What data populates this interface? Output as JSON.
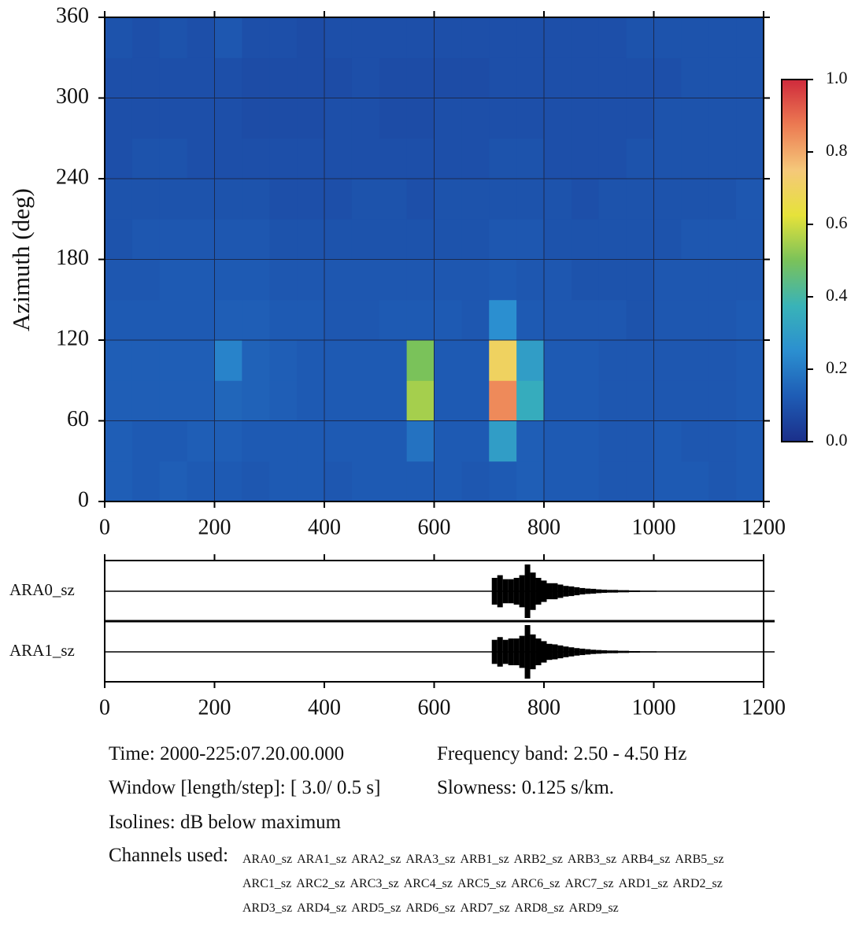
{
  "chart_data": [
    {
      "type": "heatmap",
      "ylabel": "Azimuth (deg)",
      "x_edges": [
        0,
        50,
        100,
        150,
        200,
        250,
        300,
        350,
        400,
        450,
        500,
        550,
        600,
        650,
        700,
        750,
        800,
        850,
        900,
        950,
        1000,
        1050,
        1100,
        1150,
        1200
      ],
      "y_edges": [
        0,
        30,
        60,
        90,
        120,
        150,
        180,
        210,
        240,
        270,
        300,
        330,
        360
      ],
      "values": [
        [
          0.13,
          0.12,
          0.13,
          0.12,
          0.12,
          0.11,
          0.12,
          0.12,
          0.11,
          0.12,
          0.12,
          0.12,
          0.12,
          0.11,
          0.12,
          0.13,
          0.12,
          0.12,
          0.11,
          0.11,
          0.12,
          0.12,
          0.11,
          0.12
        ],
        [
          0.13,
          0.12,
          0.12,
          0.13,
          0.13,
          0.12,
          0.12,
          0.12,
          0.12,
          0.12,
          0.12,
          0.18,
          0.12,
          0.12,
          0.3,
          0.13,
          0.12,
          0.12,
          0.11,
          0.11,
          0.12,
          0.11,
          0.11,
          0.12
        ],
        [
          0.13,
          0.13,
          0.13,
          0.13,
          0.15,
          0.14,
          0.13,
          0.12,
          0.12,
          0.12,
          0.12,
          0.55,
          0.12,
          0.12,
          0.85,
          0.35,
          0.12,
          0.12,
          0.11,
          0.11,
          0.11,
          0.11,
          0.11,
          0.12
        ],
        [
          0.13,
          0.13,
          0.13,
          0.13,
          0.22,
          0.14,
          0.13,
          0.12,
          0.12,
          0.12,
          0.12,
          0.5,
          0.12,
          0.12,
          0.7,
          0.3,
          0.12,
          0.12,
          0.11,
          0.11,
          0.11,
          0.11,
          0.11,
          0.12
        ],
        [
          0.12,
          0.12,
          0.12,
          0.12,
          0.13,
          0.13,
          0.12,
          0.12,
          0.11,
          0.11,
          0.12,
          0.12,
          0.12,
          0.11,
          0.25,
          0.12,
          0.11,
          0.11,
          0.11,
          0.1,
          0.11,
          0.11,
          0.11,
          0.12
        ],
        [
          0.11,
          0.11,
          0.12,
          0.12,
          0.12,
          0.12,
          0.11,
          0.11,
          0.11,
          0.11,
          0.11,
          0.11,
          0.11,
          0.11,
          0.12,
          0.11,
          0.11,
          0.1,
          0.1,
          0.1,
          0.11,
          0.11,
          0.11,
          0.11
        ],
        [
          0.1,
          0.11,
          0.11,
          0.11,
          0.11,
          0.11,
          0.1,
          0.1,
          0.1,
          0.1,
          0.1,
          0.1,
          0.1,
          0.1,
          0.11,
          0.11,
          0.1,
          0.1,
          0.1,
          0.1,
          0.1,
          0.11,
          0.11,
          0.11
        ],
        [
          0.1,
          0.1,
          0.1,
          0.1,
          0.1,
          0.1,
          0.09,
          0.09,
          0.09,
          0.1,
          0.1,
          0.09,
          0.1,
          0.1,
          0.1,
          0.1,
          0.1,
          0.09,
          0.1,
          0.1,
          0.1,
          0.1,
          0.1,
          0.11
        ],
        [
          0.09,
          0.1,
          0.1,
          0.09,
          0.09,
          0.09,
          0.09,
          0.09,
          0.09,
          0.09,
          0.09,
          0.09,
          0.09,
          0.09,
          0.1,
          0.1,
          0.09,
          0.09,
          0.09,
          0.1,
          0.1,
          0.1,
          0.1,
          0.1
        ],
        [
          0.09,
          0.09,
          0.09,
          0.09,
          0.09,
          0.08,
          0.08,
          0.08,
          0.09,
          0.09,
          0.08,
          0.08,
          0.09,
          0.09,
          0.09,
          0.09,
          0.09,
          0.09,
          0.09,
          0.09,
          0.1,
          0.1,
          0.1,
          0.1
        ],
        [
          0.09,
          0.09,
          0.09,
          0.09,
          0.09,
          0.08,
          0.08,
          0.08,
          0.08,
          0.09,
          0.08,
          0.08,
          0.08,
          0.08,
          0.09,
          0.09,
          0.09,
          0.09,
          0.09,
          0.09,
          0.09,
          0.1,
          0.1,
          0.1
        ],
        [
          0.1,
          0.09,
          0.1,
          0.09,
          0.11,
          0.09,
          0.09,
          0.08,
          0.09,
          0.09,
          0.09,
          0.09,
          0.09,
          0.09,
          0.09,
          0.09,
          0.09,
          0.09,
          0.09,
          0.1,
          0.1,
          0.1,
          0.1,
          0.1
        ]
      ],
      "xlim": [
        0,
        1200
      ],
      "ylim": [
        0,
        360
      ],
      "xticks": [
        0,
        200,
        400,
        600,
        800,
        1000,
        1200
      ],
      "yticks": [
        0,
        60,
        120,
        180,
        240,
        300,
        360
      ],
      "grid": true,
      "colorbar": {
        "lim": [
          0,
          1
        ],
        "ticks": [
          {
            "value": 0,
            "label": "0.0"
          },
          {
            "value": 0.2,
            "label": "0.2"
          },
          {
            "value": 0.4,
            "label": "0.4"
          },
          {
            "value": 0.6,
            "label": "0.6"
          },
          {
            "value": 0.8,
            "label": "0.8"
          },
          {
            "value": 1,
            "label": "1.0"
          }
        ],
        "colormap": [
          "#1b2f8a",
          "#1e5cb5",
          "#2b8fd0",
          "#39b3b8",
          "#7ac25a",
          "#e6e23a",
          "#f5c87a",
          "#ec7a52",
          "#cf2a3c"
        ]
      }
    },
    {
      "type": "waveform",
      "x": [
        700,
        710,
        720,
        730,
        740,
        750,
        760,
        770,
        780,
        790,
        800,
        810,
        820,
        830,
        840,
        850,
        860,
        870,
        880,
        890,
        900,
        910,
        920,
        930,
        940,
        950,
        960,
        970,
        980,
        990,
        1000
      ],
      "series": [
        {
          "name": "ARA0_sz",
          "color": "#000000",
          "values": [
            0,
            0.5,
            0.6,
            0.45,
            0.45,
            0.5,
            0.6,
            1.0,
            0.7,
            0.5,
            0.4,
            0.3,
            0.3,
            0.25,
            0.2,
            0.18,
            0.15,
            0.12,
            0.1,
            0.09,
            0.07,
            0.06,
            0.05,
            0.05,
            0.04,
            0.04,
            0.03,
            0.03,
            0.02,
            0.02,
            0.02
          ]
        },
        {
          "name": "ARA1_sz",
          "color": "#000000",
          "values": [
            0,
            0.45,
            0.55,
            0.45,
            0.5,
            0.5,
            0.6,
            1.0,
            0.65,
            0.5,
            0.4,
            0.3,
            0.28,
            0.24,
            0.2,
            0.17,
            0.14,
            0.12,
            0.1,
            0.08,
            0.07,
            0.06,
            0.05,
            0.05,
            0.04,
            0.04,
            0.03,
            0.03,
            0.02,
            0.02,
            0.02
          ]
        }
      ],
      "xlim": [
        0,
        1200
      ],
      "xticks": [
        0,
        200,
        400,
        600,
        800,
        1000,
        1200
      ]
    }
  ],
  "info": {
    "time": "Time: 2000-225:07.20.00.000",
    "band": "Frequency band: 2.50 - 4.50 Hz",
    "window": "Window [length/step]: [ 3.0/ 0.5 s]",
    "slowness": "Slowness: 0.125 s/km.",
    "isolines": "Isolines: dB below maximum",
    "channels_label": "Channels used:",
    "channels": [
      "ARA0_sz",
      "ARA1_sz",
      "ARA2_sz",
      "ARA3_sz",
      "ARB1_sz",
      "ARB2_sz",
      "ARB3_sz",
      "ARB4_sz",
      "ARB5_sz",
      "ARC1_sz",
      "ARC2_sz",
      "ARC3_sz",
      "ARC4_sz",
      "ARC5_sz",
      "ARC6_sz",
      "ARC7_sz",
      "ARD1_sz",
      "ARD2_sz",
      "ARD3_sz",
      "ARD4_sz",
      "ARD5_sz",
      "ARD6_sz",
      "ARD7_sz",
      "ARD8_sz",
      "ARD9_sz"
    ]
  }
}
